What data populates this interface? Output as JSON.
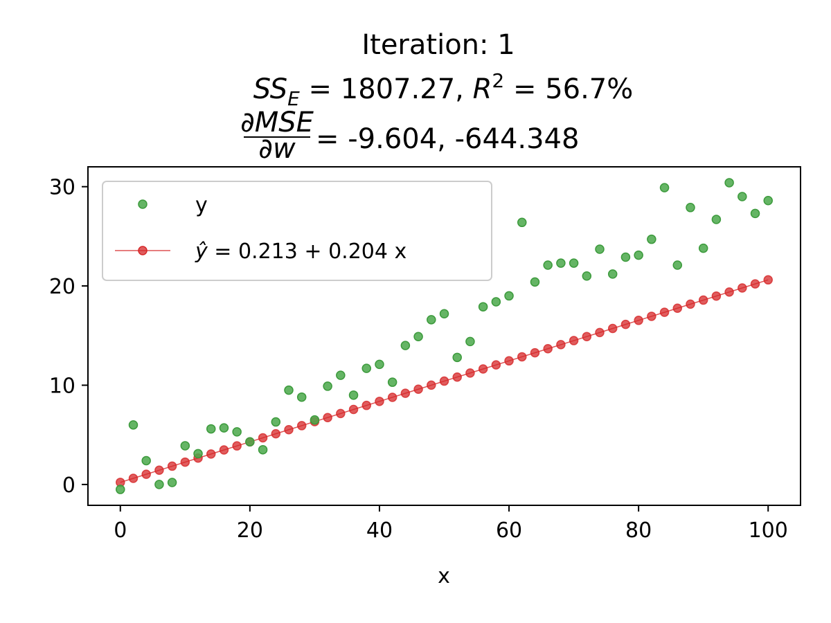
{
  "title": {
    "line1": "Iteration: 1",
    "line2": "SSE =  1807.27, R2 =  56.7%",
    "line3": "∂MSE/∂w = -9.604, -644.348",
    "sse_value": "1807.27",
    "r2_value": "56.7%",
    "gradient_values": "-9.604, -644.348"
  },
  "chart_data": {
    "type": "scatter",
    "xlabel": "x",
    "ylabel": "",
    "xlim": [
      -5,
      105
    ],
    "ylim": [
      -2.1,
      32
    ],
    "xticks": [
      0,
      20,
      40,
      60,
      80,
      100
    ],
    "yticks": [
      0,
      10,
      20,
      30
    ],
    "grid": false,
    "legend_position": "upper-left",
    "series": [
      {
        "name": "y",
        "color": "#4aa84a",
        "style": "markers",
        "x": [
          0,
          2,
          4,
          6,
          8,
          10,
          12,
          14,
          16,
          18,
          20,
          22,
          24,
          26,
          28,
          30,
          32,
          34,
          36,
          38,
          40,
          42,
          44,
          46,
          48,
          50,
          52,
          54,
          56,
          58,
          60,
          62,
          64,
          66,
          68,
          70,
          72,
          74,
          76,
          78,
          80,
          82,
          84,
          86,
          88,
          90,
          92,
          94,
          96,
          98,
          100
        ],
        "values": [
          -0.5,
          6.0,
          2.4,
          0.0,
          0.2,
          3.9,
          3.1,
          5.6,
          5.7,
          5.3,
          4.3,
          3.5,
          6.3,
          9.5,
          8.8,
          6.5,
          9.9,
          11.0,
          9.0,
          11.7,
          12.1,
          10.3,
          14.0,
          14.9,
          16.6,
          17.2,
          12.8,
          14.4,
          17.9,
          18.4,
          19.0,
          26.4,
          20.4,
          22.1,
          22.3,
          22.3,
          21.0,
          23.7,
          21.2,
          22.9,
          23.1,
          24.7,
          29.9,
          22.1,
          27.9,
          23.8,
          26.7,
          30.4,
          29.0,
          27.3,
          28.6
        ]
      },
      {
        "name": "ŷ = 0.213 + 0.204 x",
        "color": "#d62728",
        "style": "line+markers",
        "intercept": 0.213,
        "slope": 0.204,
        "x": [
          0,
          2,
          4,
          6,
          8,
          10,
          12,
          14,
          16,
          18,
          20,
          22,
          24,
          26,
          28,
          30,
          32,
          34,
          36,
          38,
          40,
          42,
          44,
          46,
          48,
          50,
          52,
          54,
          56,
          58,
          60,
          62,
          64,
          66,
          68,
          70,
          72,
          74,
          76,
          78,
          80,
          82,
          84,
          86,
          88,
          90,
          92,
          94,
          96,
          98,
          100
        ],
        "values": [
          0.213,
          0.621,
          1.029,
          1.437,
          1.845,
          2.253,
          2.661,
          3.069,
          3.477,
          3.885,
          4.293,
          4.701,
          5.109,
          5.517,
          5.925,
          6.333,
          6.741,
          7.149,
          7.557,
          7.965,
          8.373,
          8.781,
          9.189,
          9.597,
          10.005,
          10.413,
          10.821,
          11.229,
          11.637,
          12.045,
          12.453,
          12.861,
          13.269,
          13.677,
          14.085,
          14.493,
          14.901,
          15.309,
          15.717,
          16.125,
          16.533,
          16.941,
          17.349,
          17.757,
          18.165,
          18.573,
          18.981,
          19.389,
          19.797,
          20.205,
          20.613
        ]
      }
    ]
  },
  "legend": {
    "y_label": "y",
    "fit_prefix": " = 0.213 + 0.204 x"
  }
}
